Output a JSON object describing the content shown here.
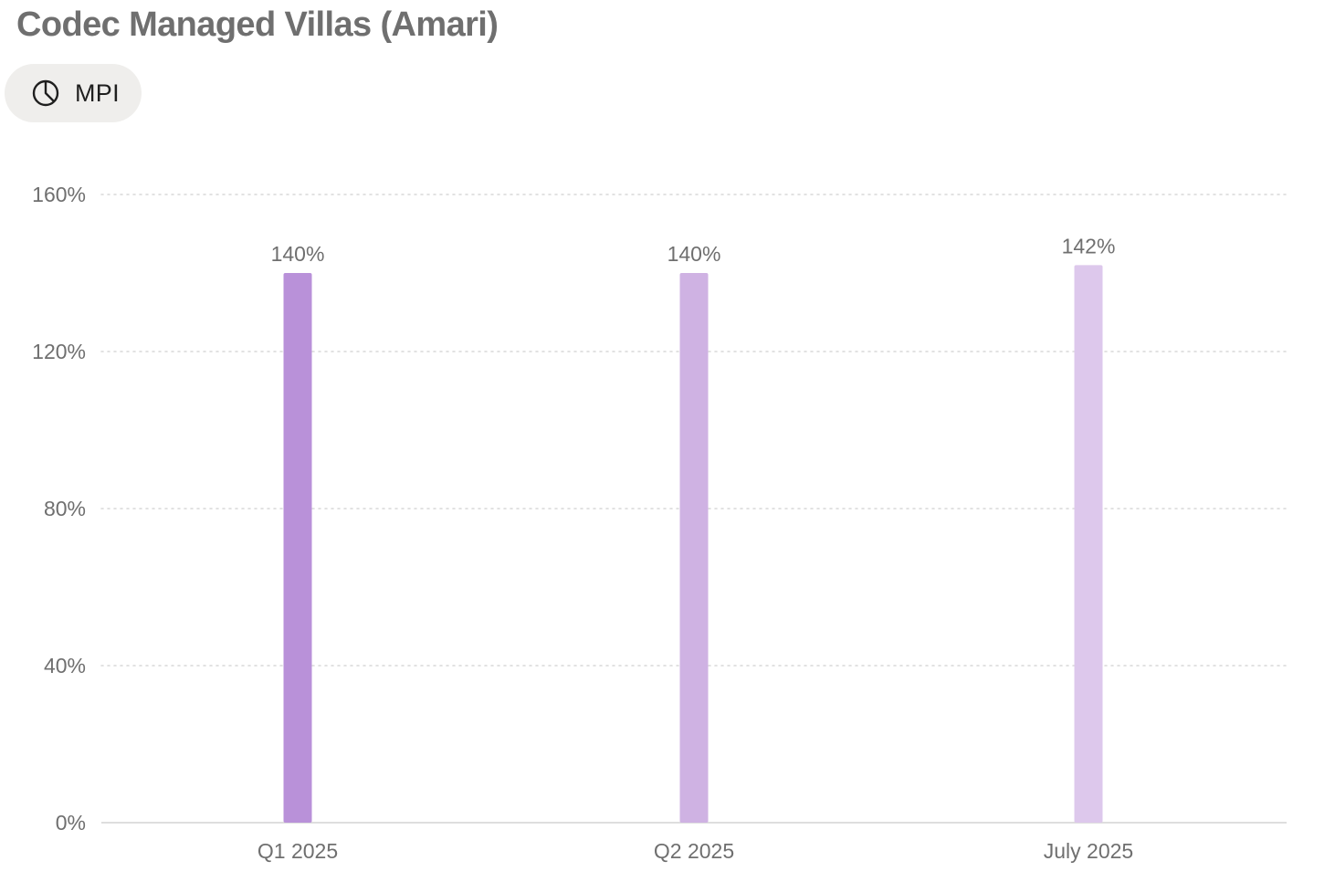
{
  "header": {
    "title": "Codec Managed Villas (Amari)"
  },
  "metric_chip": {
    "label": "MPI",
    "icon": "pie-chart-icon"
  },
  "chart_data": {
    "type": "bar",
    "categories": [
      "Q1 2025",
      "Q2 2025",
      "July 2025"
    ],
    "values": [
      140,
      140,
      142
    ],
    "data_labels": [
      "140%",
      "140%",
      "142%"
    ],
    "bar_colors": [
      "#b991d9",
      "#cfb2e3",
      "#ddc8ec"
    ],
    "y_ticks": [
      0,
      40,
      80,
      120,
      160
    ],
    "y_tick_labels": [
      "0%",
      "40%",
      "80%",
      "120%",
      "160%"
    ],
    "ylim": [
      0,
      160
    ],
    "grid": true,
    "grid_style": "dotted",
    "legend": "none",
    "title": "",
    "xlabel": "",
    "ylabel": ""
  }
}
